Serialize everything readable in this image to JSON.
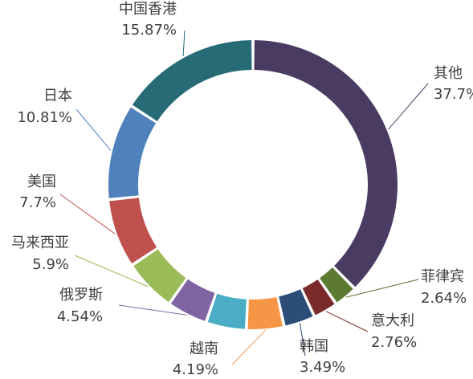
{
  "chart_data": {
    "type": "pie",
    "variant": "donut",
    "title": "",
    "legend": "none",
    "labels_position": "outside with leader lines",
    "start": "top, clockwise",
    "slices": [
      {
        "name": "其他",
        "value": 37.7,
        "label": "37.7%",
        "color": "#4a3b63"
      },
      {
        "name": "菲律宾",
        "value": 2.64,
        "label": "2.64%",
        "color": "#5c7a32"
      },
      {
        "name": "意大利",
        "value": 2.76,
        "label": "2.76%",
        "color": "#7a2a2a"
      },
      {
        "name": "韩国",
        "value": 3.49,
        "label": "3.49%",
        "color": "#2b4d77"
      },
      {
        "name": "越南",
        "value": 4.19,
        "label": "4.19%",
        "color": "#f79546"
      },
      {
        "name": "",
        "value": 4.5,
        "label": "",
        "color": "#4bacc6"
      },
      {
        "name": "俄罗斯",
        "value": 4.54,
        "label": "4.54%",
        "color": "#8064a2"
      },
      {
        "name": "马来西亚",
        "value": 5.9,
        "label": "5.9%",
        "color": "#9bbb59"
      },
      {
        "name": "美国",
        "value": 7.7,
        "label": "7.7%",
        "color": "#c0504d"
      },
      {
        "name": "日本",
        "value": 10.81,
        "label": "10.81%",
        "color": "#4f81bd"
      },
      {
        "name": "中国香港",
        "value": 15.87,
        "label": "15.87%",
        "color": "#276b77"
      }
    ]
  }
}
